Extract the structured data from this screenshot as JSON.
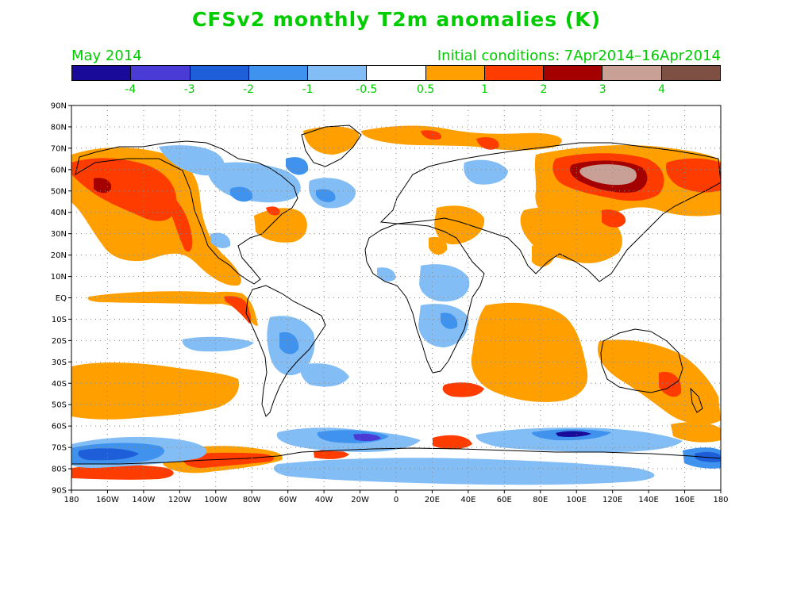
{
  "title": "CFSv2 monthly T2m anomalies (K)",
  "valid_month": "May 2014",
  "initial_conditions": "Initial conditions: 7Apr2014–16Apr2014",
  "colorbar": {
    "colors": [
      "#1a0a99",
      "#4a3ad6",
      "#1e5fd9",
      "#3f93ee",
      "#82bdf5",
      "#ffffff",
      "#ffa000",
      "#ff3c00",
      "#a50000",
      "#c8a095",
      "#7d5043"
    ],
    "labels": [
      "-4",
      "-3",
      "-2",
      "-1",
      "-0.5",
      "0.5",
      "1",
      "2",
      "3",
      "4"
    ]
  },
  "map": {
    "projection": "cylindrical equidistant",
    "lat_labels": [
      "90N",
      "80N",
      "70N",
      "60N",
      "50N",
      "40N",
      "30N",
      "20N",
      "10N",
      "EQ",
      "10S",
      "20S",
      "30S",
      "40S",
      "50S",
      "60S",
      "70S",
      "80S",
      "90S"
    ],
    "lon_labels": [
      "180",
      "160W",
      "140W",
      "120W",
      "100W",
      "80W",
      "60W",
      "40W",
      "20W",
      "0",
      "20E",
      "40E",
      "60E",
      "80E",
      "100E",
      "120E",
      "140E",
      "160E",
      "180"
    ],
    "grid": "dotted"
  }
}
